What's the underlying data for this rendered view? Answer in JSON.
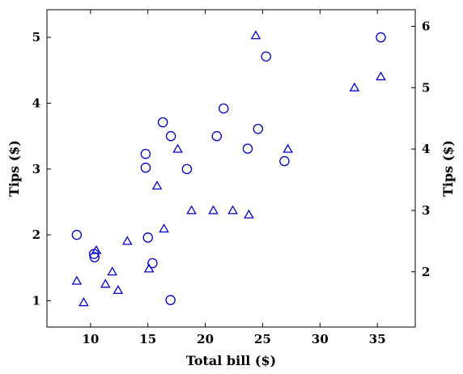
{
  "chart_data": {
    "type": "scatter",
    "title": "",
    "xlabel": "Total bill ($)",
    "ylabel_left": "Tips ($)",
    "ylabel_right": "Tips ($)",
    "xlim": [
      6.2,
      38.3
    ],
    "ylim_left": [
      0.6,
      5.42
    ],
    "ylim_right": [
      1.1,
      6.27
    ],
    "x_ticks": [
      10,
      15,
      20,
      25,
      30,
      35
    ],
    "y_left_ticks": [
      1,
      2,
      3,
      4,
      5
    ],
    "y_right_ticks": [
      2,
      3,
      4,
      5,
      6
    ],
    "grid": false,
    "series": [
      {
        "axis": "left",
        "marker": "circle",
        "color": "#0000cc",
        "points": [
          {
            "x": 8.8,
            "y": 2.0
          },
          {
            "x": 10.3,
            "y": 1.71
          },
          {
            "x": 10.35,
            "y": 1.66
          },
          {
            "x": 14.8,
            "y": 3.23
          },
          {
            "x": 14.8,
            "y": 3.02
          },
          {
            "x": 15.0,
            "y": 1.96
          },
          {
            "x": 15.4,
            "y": 1.57
          },
          {
            "x": 16.3,
            "y": 3.71
          },
          {
            "x": 16.97,
            "y": 1.01
          },
          {
            "x": 17.0,
            "y": 3.5
          },
          {
            "x": 18.4,
            "y": 3.0
          },
          {
            "x": 21.0,
            "y": 3.5
          },
          {
            "x": 21.6,
            "y": 3.92
          },
          {
            "x": 23.7,
            "y": 3.31
          },
          {
            "x": 24.6,
            "y": 3.61
          },
          {
            "x": 25.3,
            "y": 4.71
          },
          {
            "x": 26.9,
            "y": 3.12
          },
          {
            "x": 35.3,
            "y": 5.0
          }
        ]
      },
      {
        "axis": "right",
        "marker": "triangle",
        "color": "#0000cc",
        "points": [
          {
            "x": 8.8,
            "y": 1.85
          },
          {
            "x": 9.4,
            "y": 1.5
          },
          {
            "x": 10.5,
            "y": 2.35
          },
          {
            "x": 11.3,
            "y": 1.8
          },
          {
            "x": 11.9,
            "y": 2.0
          },
          {
            "x": 12.4,
            "y": 1.7
          },
          {
            "x": 13.2,
            "y": 2.5
          },
          {
            "x": 15.1,
            "y": 2.05
          },
          {
            "x": 15.8,
            "y": 3.4
          },
          {
            "x": 16.4,
            "y": 2.7
          },
          {
            "x": 17.6,
            "y": 4.0
          },
          {
            "x": 18.8,
            "y": 3.0
          },
          {
            "x": 20.7,
            "y": 3.0
          },
          {
            "x": 22.4,
            "y": 3.0
          },
          {
            "x": 23.8,
            "y": 2.93
          },
          {
            "x": 24.4,
            "y": 5.85
          },
          {
            "x": 27.2,
            "y": 4.0
          },
          {
            "x": 33.0,
            "y": 5.0
          },
          {
            "x": 35.3,
            "y": 5.18
          }
        ]
      }
    ]
  }
}
